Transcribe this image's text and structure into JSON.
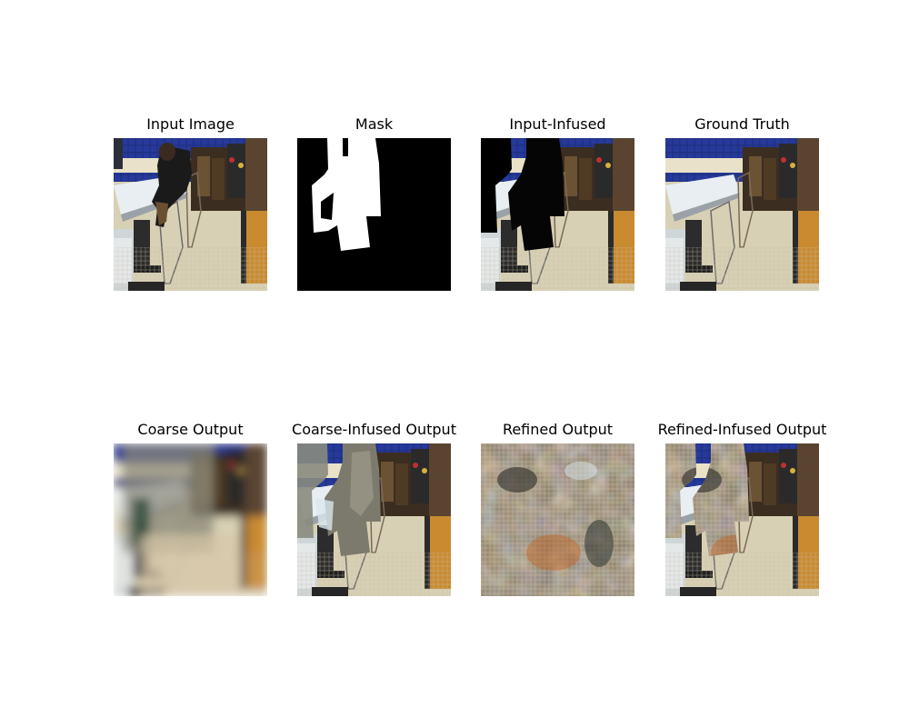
{
  "figure": {
    "panels": [
      {
        "title": "Input Image",
        "kind": "input"
      },
      {
        "title": "Mask",
        "kind": "mask"
      },
      {
        "title": "Input-Infused",
        "kind": "infused"
      },
      {
        "title": "Ground Truth",
        "kind": "truth"
      },
      {
        "title": "Coarse Output",
        "kind": "coarse"
      },
      {
        "title": "Coarse-Infused Output",
        "kind": "coarse_infused"
      },
      {
        "title": "Refined Output",
        "kind": "refined"
      },
      {
        "title": "Refined-Infused Output",
        "kind": "refined_infused"
      }
    ]
  }
}
